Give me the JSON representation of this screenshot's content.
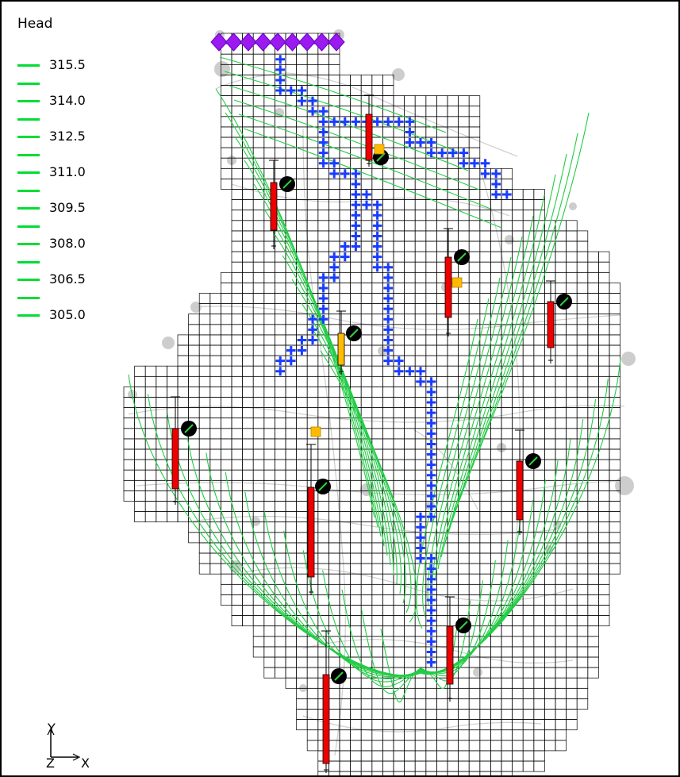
{
  "legend": {
    "title": "Head",
    "items": [
      {
        "label": "315.5"
      },
      {
        "label": "314.0"
      },
      {
        "label": "312.5"
      },
      {
        "label": "311.0"
      },
      {
        "label": "309.5"
      },
      {
        "label": "308.0"
      },
      {
        "label": "306.5"
      },
      {
        "label": "305.0"
      }
    ],
    "color": "#00dd33"
  },
  "axis_triad": {
    "x": "X",
    "y": "Y",
    "z": "Z"
  },
  "colors": {
    "contour": "#22cc44",
    "grid": "#000000",
    "river": "#1a3cff",
    "specified_head": "#9a1af0",
    "well_bar": "#ee0000",
    "well_bar_partial": "#ffbb00",
    "background_feature": "#c8c8c8"
  },
  "icons": [
    "well-marker-icon",
    "specified-head-cell-icon",
    "river-cell-icon",
    "axis-triad-icon"
  ]
}
